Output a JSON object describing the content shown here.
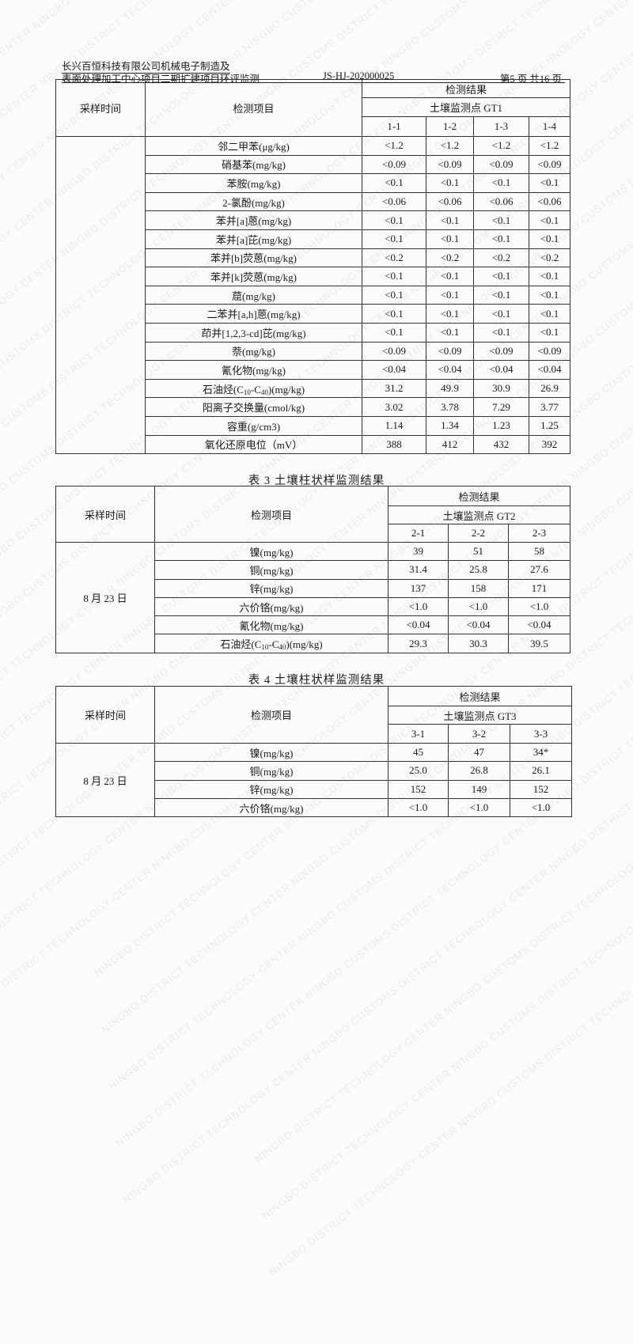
{
  "header": {
    "line1": "长兴百恒科技有限公司机械电子制造及",
    "line2": "表面处理加工中心项目二期扩建项目环评监测",
    "report_no": "JS-HJ-202000025",
    "page": "第5 页 共16 页"
  },
  "watermark": "NINGBO DISTRICT TECHNOLOGY CENTER   NINGBO CUSTOMS DISTRICT TECHNOLOGY CENTER   ",
  "table2": {
    "col_time": "采样时间",
    "col_item": "检测项目",
    "col_result": "检测结果",
    "point": "土壤监测点 GT1",
    "samples": [
      "1-1",
      "1-2",
      "1-3",
      "1-4"
    ],
    "rows": [
      {
        "item": "邻二甲苯(μg/kg)",
        "values": [
          "<1.2",
          "<1.2",
          "<1.2",
          "<1.2"
        ]
      },
      {
        "item": "硝基苯(mg/kg)",
        "values": [
          "<0.09",
          "<0.09",
          "<0.09",
          "<0.09"
        ]
      },
      {
        "item": "苯胺(mg/kg)",
        "values": [
          "<0.1",
          "<0.1",
          "<0.1",
          "<0.1"
        ]
      },
      {
        "item": "2-氯酚(mg/kg)",
        "values": [
          "<0.06",
          "<0.06",
          "<0.06",
          "<0.06"
        ]
      },
      {
        "item": "苯并[a]蒽(mg/kg)",
        "values": [
          "<0.1",
          "<0.1",
          "<0.1",
          "<0.1"
        ]
      },
      {
        "item": "苯并[a]芘(mg/kg)",
        "values": [
          "<0.1",
          "<0.1",
          "<0.1",
          "<0.1"
        ]
      },
      {
        "item": "苯并[b]荧蒽(mg/kg)",
        "values": [
          "<0.2",
          "<0.2",
          "<0.2",
          "<0.2"
        ]
      },
      {
        "item": "苯并[k]荧蒽(mg/kg)",
        "values": [
          "<0.1",
          "<0.1",
          "<0.1",
          "<0.1"
        ]
      },
      {
        "item": "䓛(mg/kg)",
        "values": [
          "<0.1",
          "<0.1",
          "<0.1",
          "<0.1"
        ]
      },
      {
        "item": "二苯并[a,h]蒽(mg/kg)",
        "values": [
          "<0.1",
          "<0.1",
          "<0.1",
          "<0.1"
        ]
      },
      {
        "item": "茚并[1,2,3-cd]芘(mg/kg)",
        "values": [
          "<0.1",
          "<0.1",
          "<0.1",
          "<0.1"
        ]
      },
      {
        "item": "萘(mg/kg)",
        "values": [
          "<0.09",
          "<0.09",
          "<0.09",
          "<0.09"
        ]
      },
      {
        "item": "氰化物(mg/kg)",
        "values": [
          "<0.04",
          "<0.04",
          "<0.04",
          "<0.04"
        ]
      },
      {
        "item": "石油烃(C10-C40)(mg/kg)",
        "values": [
          "31.2",
          "49.9",
          "30.9",
          "26.9"
        ]
      },
      {
        "item": "阳离子交换量(cmol/kg)",
        "values": [
          "3.02",
          "3.78",
          "7.29",
          "3.77"
        ]
      },
      {
        "item": "容重(g/cm3)",
        "values": [
          "1.14",
          "1.34",
          "1.23",
          "1.25"
        ]
      },
      {
        "item": "氧化还原电位（mV）",
        "values": [
          "388",
          "412",
          "432",
          "392"
        ]
      }
    ]
  },
  "table3": {
    "caption": "表 3  土壤柱状样监测结果",
    "col_time": "采样时间",
    "col_item": "检测项目",
    "col_result": "检测结果",
    "point": "土壤监测点 GT2",
    "samples": [
      "2-1",
      "2-2",
      "2-3"
    ],
    "date": "8 月 23 日",
    "rows": [
      {
        "item": "镍(mg/kg)",
        "values": [
          "39",
          "51",
          "58"
        ]
      },
      {
        "item": "铜(mg/kg)",
        "values": [
          "31.4",
          "25.8",
          "27.6"
        ]
      },
      {
        "item": "锌(mg/kg)",
        "values": [
          "137",
          "158",
          "171"
        ]
      },
      {
        "item": "六价铬(mg/kg)",
        "values": [
          "<1.0",
          "<1.0",
          "<1.0"
        ]
      },
      {
        "item": "氰化物(mg/kg)",
        "values": [
          "<0.04",
          "<0.04",
          "<0.04"
        ]
      },
      {
        "item": "石油烃(C10-C40)(mg/kg)",
        "values": [
          "29.3",
          "30.3",
          "39.5"
        ]
      }
    ]
  },
  "table4": {
    "caption": "表 4  土壤柱状样监测结果",
    "col_time": "采样时间",
    "col_item": "检测项目",
    "col_result": "检测结果",
    "point": "土壤监测点 GT3",
    "samples": [
      "3-1",
      "3-2",
      "3-3"
    ],
    "date": "8 月 23 日",
    "rows": [
      {
        "item": "镍(mg/kg)",
        "values": [
          "45",
          "47",
          "34*"
        ]
      },
      {
        "item": "铜(mg/kg)",
        "values": [
          "25.0",
          "26.8",
          "26.1"
        ]
      },
      {
        "item": "锌(mg/kg)",
        "values": [
          "152",
          "149",
          "152"
        ]
      },
      {
        "item": "六价铬(mg/kg)",
        "values": [
          "<1.0",
          "<1.0",
          "<1.0"
        ]
      }
    ]
  }
}
